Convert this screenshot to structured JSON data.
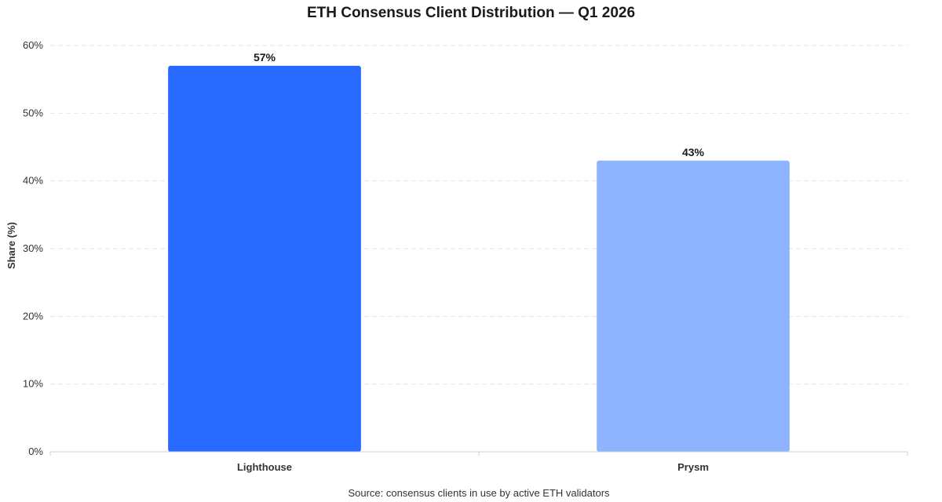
{
  "chart_data": {
    "type": "bar",
    "title": "ETH Consensus Client Distribution — Q1 2026",
    "ylabel": "Share (%)",
    "xlabel": "",
    "categories": [
      "Lighthouse",
      "Prysm"
    ],
    "values": [
      57,
      43
    ],
    "data_labels": [
      "57%",
      "43%"
    ],
    "bar_colors": [
      "#2869ff",
      "#8eb4ff"
    ],
    "ylim": [
      0,
      60
    ],
    "yticks": [
      0,
      10,
      20,
      30,
      40,
      50,
      60
    ],
    "ytick_labels": [
      "0%",
      "10%",
      "20%",
      "30%",
      "40%",
      "50%",
      "60%"
    ],
    "grid": true,
    "source": "Source: consensus clients in use by active ETH validators"
  }
}
